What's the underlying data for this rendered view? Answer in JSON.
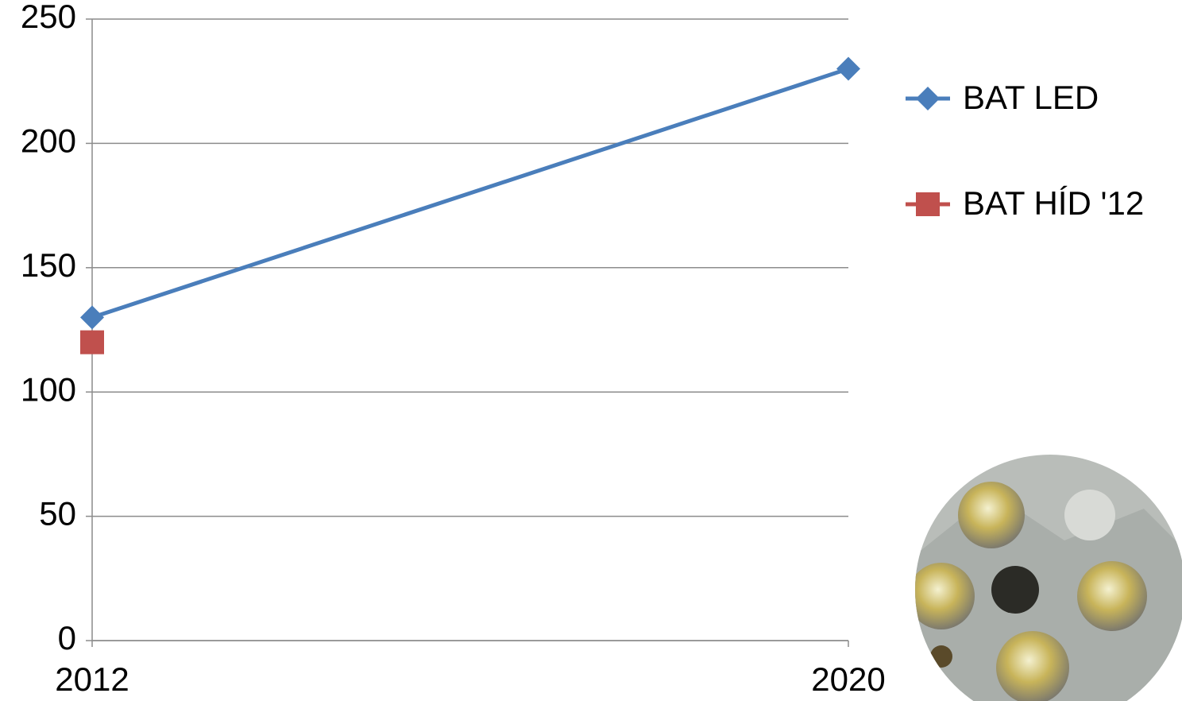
{
  "chart_data": {
    "type": "line",
    "categories": [
      "2012",
      "2020"
    ],
    "series": [
      {
        "name": "BAT LED",
        "color": "#4a7ebb",
        "marker": "diamond",
        "values": [
          130,
          230
        ]
      },
      {
        "name": "BAT HÍD '12",
        "color": "#c0504d",
        "marker": "square",
        "values": [
          120,
          null
        ]
      }
    ],
    "ylim": [
      0,
      250
    ],
    "yticks": [
      0,
      50,
      100,
      150,
      200,
      250
    ],
    "grid": true,
    "legend": "right"
  }
}
